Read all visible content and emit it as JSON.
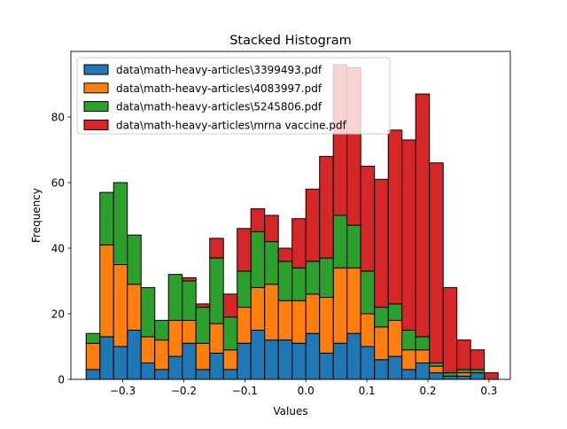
{
  "chart_data": {
    "type": "bar",
    "stacked": true,
    "title": "Stacked Histogram",
    "xlabel": "Values",
    "ylabel": "Frequency",
    "xlim": [
      -0.385,
      0.335
    ],
    "ylim": [
      0,
      100
    ],
    "x_ticks": [
      -0.3,
      -0.2,
      -0.1,
      0.0,
      0.1,
      0.2,
      0.3
    ],
    "x_tick_labels": [
      "−0.3",
      "−0.2",
      "−0.1",
      "0.0",
      "0.1",
      "0.2",
      "0.3"
    ],
    "y_ticks": [
      0,
      20,
      40,
      60,
      80
    ],
    "y_tick_labels": [
      "0",
      "20",
      "40",
      "60",
      "80"
    ],
    "grid": false,
    "legend_position": "upper-left",
    "bins": {
      "start": -0.36,
      "width": 0.0225,
      "count": 30
    },
    "series": [
      {
        "name": "data\\math-heavy-articles\\3399493.pdf",
        "color": "#1f77b4",
        "values": [
          3,
          13,
          10,
          15,
          5,
          3,
          7,
          11,
          3,
          8,
          3,
          11,
          15,
          12,
          12,
          11,
          14,
          8,
          11,
          14,
          10,
          6,
          7,
          3,
          5,
          2,
          1,
          1,
          2,
          0
        ]
      },
      {
        "name": "data\\math-heavy-articles\\4083997.pdf",
        "color": "#ff7f0e",
        "values": [
          8,
          28,
          25,
          14,
          8,
          9,
          11,
          7,
          8,
          9,
          6,
          11,
          13,
          17,
          12,
          13,
          12,
          17,
          23,
          20,
          10,
          10,
          11,
          6,
          4,
          2,
          0,
          1,
          0,
          0
        ]
      },
      {
        "name": "data\\math-heavy-articles\\5245806.pdf",
        "color": "#2ca02c",
        "values": [
          3,
          16,
          25,
          15,
          15,
          6,
          14,
          12,
          11,
          20,
          10,
          11,
          17,
          13,
          12,
          10,
          10,
          12,
          16,
          13,
          13,
          6,
          5,
          6,
          4,
          1,
          1,
          1,
          1,
          0
        ]
      },
      {
        "name": "data\\math-heavy-articles\\mrna vaccine.pdf",
        "color": "#d62728",
        "values": [
          0,
          0,
          0,
          0,
          0,
          0,
          0,
          1,
          1,
          6,
          7,
          13,
          7,
          8,
          4,
          15,
          22,
          31,
          46,
          48,
          32,
          39,
          53,
          58,
          74,
          61,
          26,
          9,
          6,
          2
        ]
      }
    ]
  }
}
